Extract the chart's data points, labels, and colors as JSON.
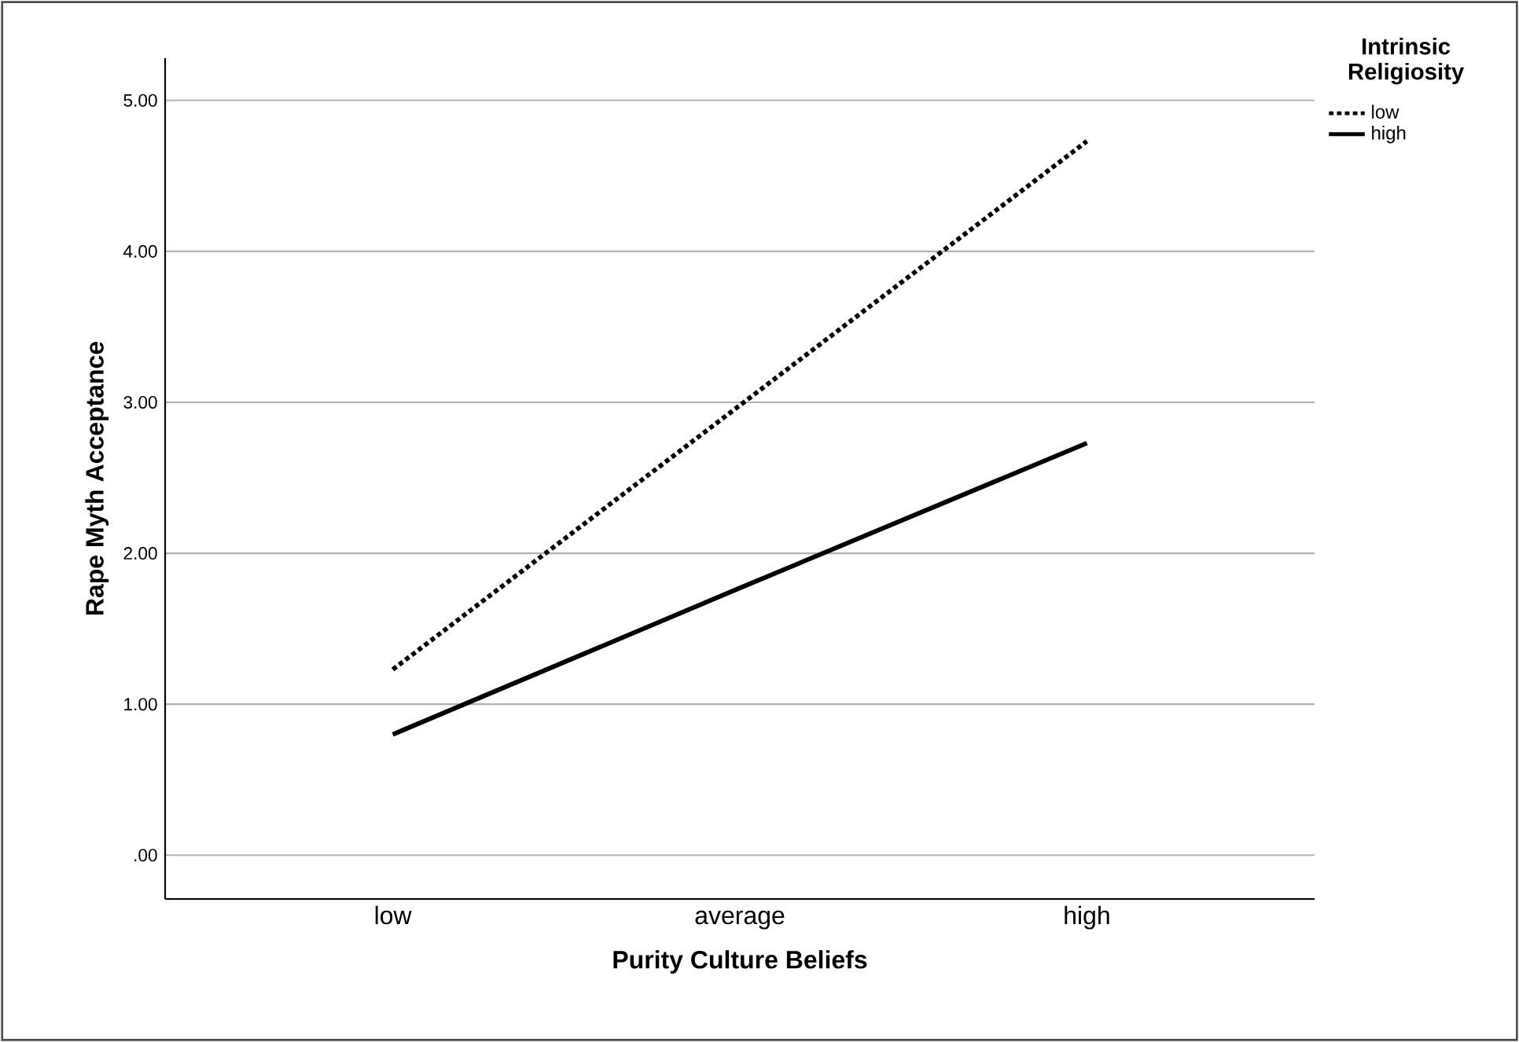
{
  "chart_data": {
    "type": "line",
    "xlabel": "Purity Culture Beliefs",
    "ylabel": "Rape Myth Acceptance",
    "legend_title": "Intrinsic Religiosity",
    "categories": [
      "low",
      "average",
      "high"
    ],
    "series": [
      {
        "name": "low",
        "color": "#000000",
        "line_style": "dotted",
        "values": [
          1.23,
          2.98,
          4.73
        ]
      },
      {
        "name": "high",
        "color": "#000000",
        "line_style": "solid",
        "values": [
          0.8,
          1.77,
          2.73
        ]
      }
    ],
    "ylim": [
      -0.29,
      5.28
    ],
    "yticks": [
      {
        "value": 0,
        "label": ".00"
      },
      {
        "value": 1,
        "label": "1.00"
      },
      {
        "value": 2,
        "label": "2.00"
      },
      {
        "value": 3,
        "label": "3.00"
      },
      {
        "value": 4,
        "label": "4.00"
      },
      {
        "value": 5,
        "label": "5.00"
      }
    ],
    "grid": "y",
    "legend": "top right",
    "marker": "none"
  }
}
